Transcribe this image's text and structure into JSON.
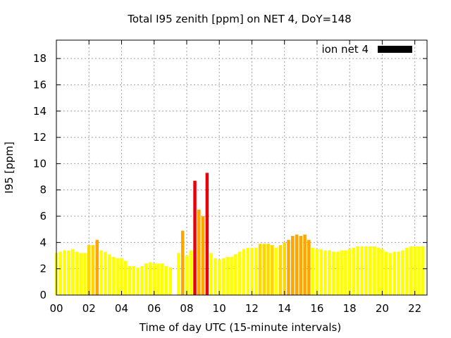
{
  "chart_data": {
    "type": "bar",
    "title": "Total I95 zenith [ppm] on NET 4, DoY=148",
    "xlabel": "Time of day UTC (15-minute intervals)",
    "ylabel": "I95 [ppm]",
    "xlim": [
      0,
      22.75
    ],
    "ylim": [
      0,
      19.4
    ],
    "xticks": [
      "00",
      "02",
      "04",
      "06",
      "08",
      "10",
      "12",
      "14",
      "16",
      "18",
      "20",
      "22"
    ],
    "yticks": [
      "0",
      "2",
      "4",
      "6",
      "8",
      "10",
      "12",
      "14",
      "16",
      "18"
    ],
    "grid": true,
    "legend": {
      "position": "top-right",
      "label": "ion net 4",
      "color": "#000000"
    },
    "colors": {
      "low": "#ffff00",
      "mid": "#ffd700",
      "elevated": "#ffa500",
      "high": "#e8000b"
    },
    "series": [
      {
        "name": "ion net 4",
        "x": [
          0.0,
          0.25,
          0.5,
          0.75,
          1.0,
          1.25,
          1.5,
          1.75,
          2.0,
          2.25,
          2.5,
          2.75,
          3.0,
          3.25,
          3.5,
          3.75,
          4.0,
          4.25,
          4.5,
          4.75,
          5.0,
          5.25,
          5.5,
          5.75,
          6.0,
          6.25,
          6.5,
          6.75,
          7.0,
          7.5,
          7.75,
          8.0,
          8.25,
          8.5,
          8.75,
          9.0,
          9.25,
          9.5,
          9.75,
          10.0,
          10.25,
          10.5,
          10.75,
          11.0,
          11.25,
          11.5,
          11.75,
          12.0,
          12.25,
          12.5,
          12.75,
          13.0,
          13.25,
          13.5,
          13.75,
          14.0,
          14.25,
          14.5,
          14.75,
          15.0,
          15.25,
          15.5,
          15.75,
          16.0,
          16.25,
          16.5,
          16.75,
          17.0,
          17.25,
          17.5,
          17.75,
          18.0,
          18.25,
          18.5,
          18.75,
          19.0,
          19.25,
          19.5,
          19.75,
          20.0,
          20.25,
          20.5,
          20.75,
          21.0,
          21.25,
          21.5,
          21.75,
          22.0,
          22.25,
          22.5
        ],
        "values": [
          3.2,
          3.3,
          3.4,
          3.4,
          3.5,
          3.3,
          3.2,
          3.2,
          3.8,
          3.8,
          4.2,
          3.4,
          3.3,
          3.1,
          2.9,
          2.8,
          2.8,
          2.6,
          2.2,
          2.2,
          2.1,
          2.2,
          2.4,
          2.5,
          2.4,
          2.4,
          2.4,
          2.2,
          2.1,
          3.2,
          4.9,
          3.0,
          3.4,
          8.7,
          6.5,
          6.0,
          9.3,
          3.2,
          2.8,
          2.7,
          2.8,
          2.9,
          2.9,
          3.1,
          3.3,
          3.5,
          3.6,
          3.6,
          3.6,
          3.9,
          3.9,
          3.9,
          3.8,
          3.6,
          3.8,
          4.0,
          4.2,
          4.5,
          4.6,
          4.5,
          4.6,
          4.2,
          3.6,
          3.5,
          3.5,
          3.4,
          3.4,
          3.3,
          3.3,
          3.4,
          3.4,
          3.5,
          3.6,
          3.7,
          3.7,
          3.7,
          3.7,
          3.7,
          3.6,
          3.5,
          3.3,
          3.2,
          3.3,
          3.3,
          3.4,
          3.6,
          3.7,
          3.7,
          3.7,
          3.7
        ]
      }
    ]
  }
}
